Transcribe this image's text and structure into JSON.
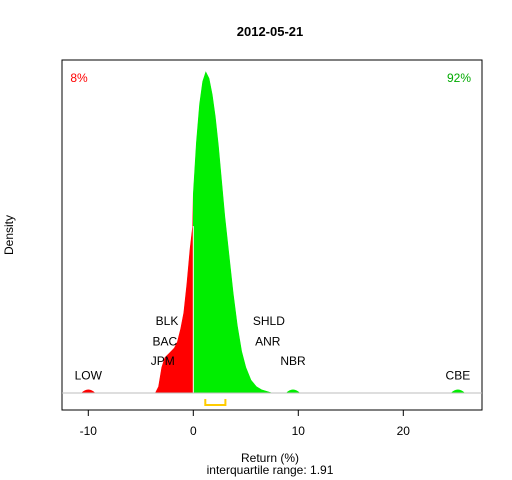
{
  "chart_data": {
    "type": "area",
    "title": "2012-05-21",
    "xlabel": "Return (%)",
    "ylabel": "Density",
    "subtitle": "interquartile range: 1.91",
    "xlim": [
      -12.5,
      27.5
    ],
    "xticks": [
      -10,
      0,
      10,
      20
    ],
    "grid": false,
    "pct_below_zero": "8%",
    "pct_above_zero": "92%",
    "colors": {
      "negative": "#ff0000",
      "positive": "#00ee00",
      "iqr": "#ffcc00",
      "title": "#000000"
    },
    "density": {
      "x": [
        -3.6,
        -3.3,
        -3.0,
        -2.7,
        -2.4,
        -2.1,
        -1.8,
        -1.5,
        -1.2,
        -0.9,
        -0.6,
        -0.3,
        -0.05,
        0,
        0.3,
        0.6,
        0.9,
        1.2,
        1.5,
        1.8,
        2.1,
        2.4,
        2.7,
        3.0,
        3.4,
        3.8,
        4.2,
        4.6,
        5.0,
        5.5,
        6.0,
        6.5,
        7.0,
        7.5
      ],
      "y": [
        0.0,
        0.02,
        0.08,
        0.11,
        0.12,
        0.13,
        0.14,
        0.16,
        0.2,
        0.25,
        0.34,
        0.45,
        0.52,
        0.62,
        0.78,
        0.9,
        0.97,
        1.0,
        0.98,
        0.93,
        0.86,
        0.77,
        0.66,
        0.55,
        0.43,
        0.31,
        0.21,
        0.13,
        0.08,
        0.04,
        0.02,
        0.01,
        0.005,
        0.0
      ]
    },
    "outlier_bumps": [
      {
        "x": -10.0,
        "y": 0.012,
        "color": "negative"
      },
      {
        "x": 9.5,
        "y": 0.012,
        "color": "positive"
      },
      {
        "x": 25.2,
        "y": 0.012,
        "color": "positive"
      }
    ],
    "iqr": [
      1.15,
      3.06
    ],
    "annotations": [
      {
        "text": "LOW",
        "x": -10.0,
        "y": 0.055
      },
      {
        "text": "BLK",
        "x": -2.5,
        "y": 0.225
      },
      {
        "text": "BAC",
        "x": -2.7,
        "y": 0.16
      },
      {
        "text": "JPM",
        "x": -2.9,
        "y": 0.1
      },
      {
        "text": "SHLD",
        "x": 7.2,
        "y": 0.225
      },
      {
        "text": "ANR",
        "x": 7.1,
        "y": 0.16
      },
      {
        "text": "NBR",
        "x": 9.5,
        "y": 0.1
      },
      {
        "text": "CBE",
        "x": 25.2,
        "y": 0.055
      }
    ]
  }
}
